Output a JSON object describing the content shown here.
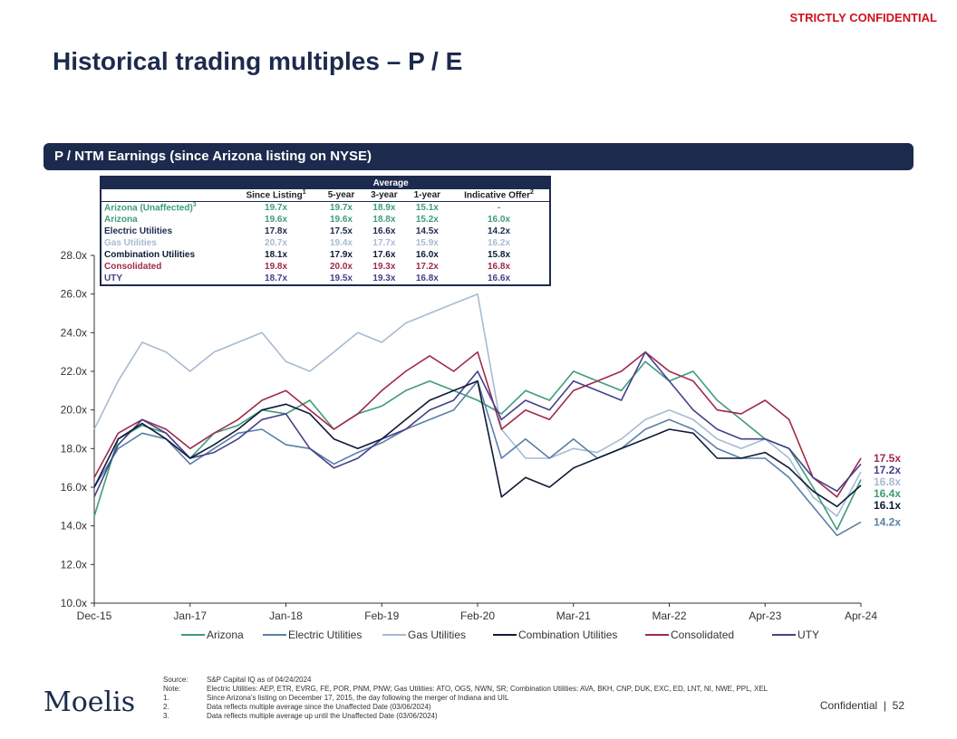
{
  "header": {
    "confidential": "STRICTLY CONFIDENTIAL",
    "title": "Historical trading multiples – P / E",
    "banner": "P / NTM Earnings (since Arizona listing on NYSE)"
  },
  "colors": {
    "Arizona": "#3e9c7a",
    "Electric Utilities": "#5a7fa8",
    "Gas Utilities": "#a7bbd2",
    "Combination Utilities": "#0e1a36",
    "Consolidated": "#9e2a4a",
    "UTY": "#45408a",
    "navy": "#1c2a4d"
  },
  "table": {
    "group_header": "Average",
    "columns": [
      "Since Listing",
      "5-year",
      "3-year",
      "1-year",
      "Indicative Offer"
    ],
    "column_sups": [
      "1",
      "",
      "",
      "",
      "2"
    ],
    "rows": [
      {
        "label": "Arizona (Unaffected)",
        "sup": "3",
        "values": [
          "19.7x",
          "19.7x",
          "18.9x",
          "15.1x",
          "-"
        ],
        "color": "#3e9c7a"
      },
      {
        "label": "Arizona",
        "sup": "",
        "values": [
          "19.6x",
          "19.6x",
          "18.8x",
          "15.2x",
          "16.0x"
        ],
        "color": "#3e9c7a"
      },
      {
        "label": "Electric Utilities",
        "sup": "",
        "values": [
          "17.8x",
          "17.5x",
          "16.6x",
          "14.5x",
          "14.2x"
        ],
        "color": "#1c2a4d"
      },
      {
        "label": "Gas Utilities",
        "sup": "",
        "values": [
          "20.7x",
          "19.4x",
          "17.7x",
          "15.9x",
          "16.2x"
        ],
        "color": "#a7bbd2"
      },
      {
        "label": "Combination Utilities",
        "sup": "",
        "values": [
          "18.1x",
          "17.9x",
          "17.6x",
          "16.0x",
          "15.8x"
        ],
        "color": "#0e1a36"
      },
      {
        "label": "Consolidated",
        "sup": "",
        "values": [
          "19.8x",
          "20.0x",
          "19.3x",
          "17.2x",
          "16.8x"
        ],
        "color": "#9e2a4a"
      },
      {
        "label": "UTY",
        "sup": "",
        "values": [
          "18.7x",
          "19.5x",
          "19.3x",
          "16.8x",
          "16.6x"
        ],
        "color": "#45408a"
      }
    ]
  },
  "chart_data": {
    "type": "line",
    "title": "P / NTM Earnings (since Arizona listing on NYSE)",
    "xlabel": "",
    "ylabel": "",
    "ylim": [
      10.0,
      28.0
    ],
    "yticks": [
      "10.0x",
      "12.0x",
      "14.0x",
      "16.0x",
      "18.0x",
      "20.0x",
      "22.0x",
      "24.0x",
      "26.0x",
      "28.0x"
    ],
    "x_labels": [
      "Dec-15",
      "Jan-17",
      "Jan-18",
      "Feb-19",
      "Feb-20",
      "Mar-21",
      "Mar-22",
      "Apr-23",
      "Apr-24"
    ],
    "x": [
      0,
      0.25,
      0.5,
      0.75,
      1,
      1.25,
      1.5,
      1.75,
      2,
      2.25,
      2.5,
      2.75,
      3,
      3.25,
      3.5,
      3.75,
      4,
      4.25,
      4.5,
      4.75,
      5,
      5.25,
      5.5,
      5.75,
      6,
      6.25,
      6.5,
      6.75,
      7,
      7.25,
      7.5,
      7.75,
      8
    ],
    "series": [
      {
        "name": "Arizona",
        "end_label": "16.4x",
        "values": [
          14.5,
          18.5,
          19.2,
          18.8,
          17.5,
          18.8,
          19.2,
          20.0,
          19.8,
          20.5,
          19.0,
          19.8,
          20.2,
          21.0,
          21.5,
          21.0,
          20.5,
          19.8,
          21.0,
          20.5,
          22.0,
          21.5,
          21.0,
          22.5,
          21.5,
          22.0,
          20.5,
          19.5,
          18.5,
          18.0,
          16.0,
          13.8,
          16.4
        ]
      },
      {
        "name": "Electric Utilities",
        "end_label": "14.2x",
        "values": [
          16.0,
          18.0,
          18.8,
          18.5,
          17.2,
          18.0,
          18.8,
          19.0,
          18.2,
          18.0,
          17.2,
          17.8,
          18.3,
          19.0,
          19.5,
          20.0,
          21.5,
          17.5,
          18.5,
          17.5,
          18.5,
          17.5,
          18.0,
          19.0,
          19.5,
          19.0,
          18.0,
          17.5,
          17.5,
          16.5,
          15.0,
          13.5,
          14.2
        ]
      },
      {
        "name": "Gas Utilities",
        "end_label": "16.8x",
        "values": [
          19.0,
          21.5,
          23.5,
          23.0,
          22.0,
          23.0,
          23.5,
          24.0,
          22.5,
          22.0,
          23.0,
          24.0,
          23.5,
          24.5,
          25.0,
          25.5,
          26.0,
          19.0,
          17.5,
          17.5,
          18.0,
          17.8,
          18.5,
          19.5,
          20.0,
          19.5,
          18.5,
          18.0,
          18.5,
          17.5,
          15.5,
          14.5,
          16.8
        ]
      },
      {
        "name": "Combination Utilities",
        "end_label": "16.1x",
        "values": [
          16.0,
          18.5,
          19.3,
          18.5,
          17.5,
          18.2,
          19.0,
          20.0,
          20.3,
          19.8,
          18.5,
          18.0,
          18.5,
          19.5,
          20.5,
          21.0,
          21.5,
          15.5,
          16.5,
          16.0,
          17.0,
          17.5,
          18.0,
          18.5,
          19.0,
          18.8,
          17.5,
          17.5,
          17.8,
          17.0,
          15.8,
          15.0,
          16.1
        ]
      },
      {
        "name": "Consolidated",
        "end_label": "17.5x",
        "values": [
          16.5,
          18.8,
          19.5,
          19.0,
          18.0,
          18.8,
          19.5,
          20.5,
          21.0,
          20.0,
          19.0,
          19.8,
          21.0,
          22.0,
          22.8,
          22.0,
          23.0,
          19.0,
          20.0,
          19.5,
          21.0,
          21.5,
          22.0,
          23.0,
          22.0,
          21.5,
          20.0,
          19.8,
          20.5,
          19.5,
          16.5,
          15.5,
          17.5
        ]
      },
      {
        "name": "UTY",
        "end_label": "17.2x",
        "values": [
          15.5,
          18.2,
          19.5,
          18.8,
          17.5,
          17.8,
          18.5,
          19.5,
          19.8,
          18.0,
          17.0,
          17.5,
          18.5,
          19.0,
          20.0,
          20.5,
          22.0,
          19.5,
          20.5,
          20.0,
          21.5,
          21.0,
          20.5,
          23.0,
          21.5,
          20.0,
          19.0,
          18.5,
          18.5,
          18.0,
          16.5,
          15.8,
          17.2
        ]
      }
    ],
    "legend_position": "bottom"
  },
  "footer": {
    "notes": [
      {
        "k": "Source:",
        "v": "S&P Capital IQ as of 04/24/2024"
      },
      {
        "k": "Note:",
        "v": "Electric Utilities: AEP, ETR, EVRG, FE, POR, PNM, PNW; Gas Utilities: ATO, OGS, NWN, SR; Combination Utilities: AVA, BKH, CNP, DUK, EXC, ED, LNT, NI, NWE, PPL, XEL"
      },
      {
        "k": "1.",
        "v": "Since Arizona’s listing on December 17, 2015, the day following the merger of Indiana and UIL"
      },
      {
        "k": "2.",
        "v": "Data reflects multiple average since the Unaffected Date (03/06/2024)"
      },
      {
        "k": "3.",
        "v": "Data reflects multiple average up until the Unaffected Date (03/06/2024)"
      }
    ],
    "logo": "Moelis",
    "confidential": "Confidential",
    "page": "52"
  }
}
